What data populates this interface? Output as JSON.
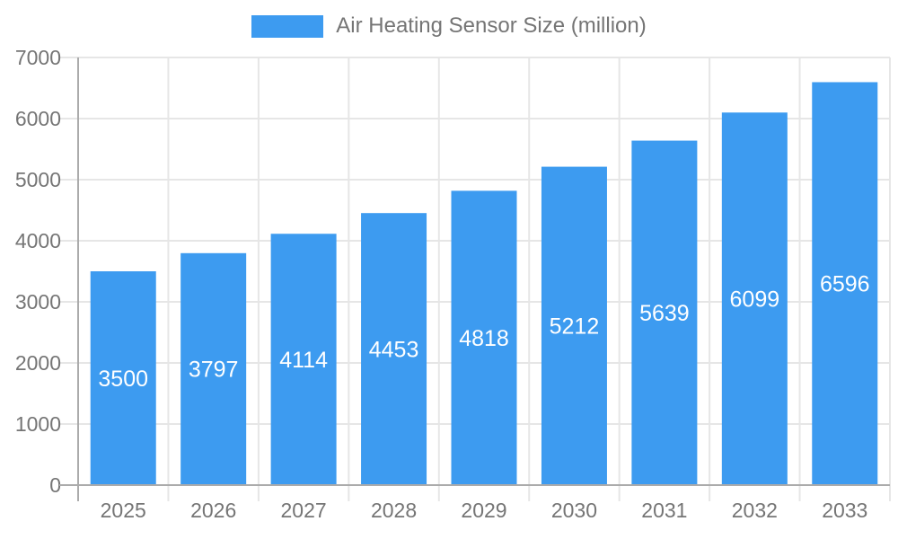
{
  "legend": {
    "label": "Air Heating Sensor Size (million)"
  },
  "chart_data": {
    "type": "bar",
    "title": "Air Heating Sensor Size (million)",
    "categories": [
      "2025",
      "2026",
      "2027",
      "2028",
      "2029",
      "2030",
      "2031",
      "2032",
      "2033"
    ],
    "values": [
      3500,
      3797,
      4114,
      4453,
      4818,
      5212,
      5639,
      6099,
      6596
    ],
    "xlabel": "",
    "ylabel": "",
    "ylim": [
      0,
      7000
    ],
    "ytick_step": 1000,
    "ytick_labels": [
      "0",
      "1000",
      "2000",
      "3000",
      "4000",
      "5000",
      "6000",
      "7000"
    ],
    "grid": true,
    "legend_position": "top",
    "value_labels": "inside-center",
    "colors": {
      "bar": "#3D9BF0",
      "grid": "#E6E6E6",
      "axis": "#ABABAB",
      "tick_text": "#757575",
      "value_text": "#FFFFFF",
      "background": "#FFFFFF"
    }
  }
}
